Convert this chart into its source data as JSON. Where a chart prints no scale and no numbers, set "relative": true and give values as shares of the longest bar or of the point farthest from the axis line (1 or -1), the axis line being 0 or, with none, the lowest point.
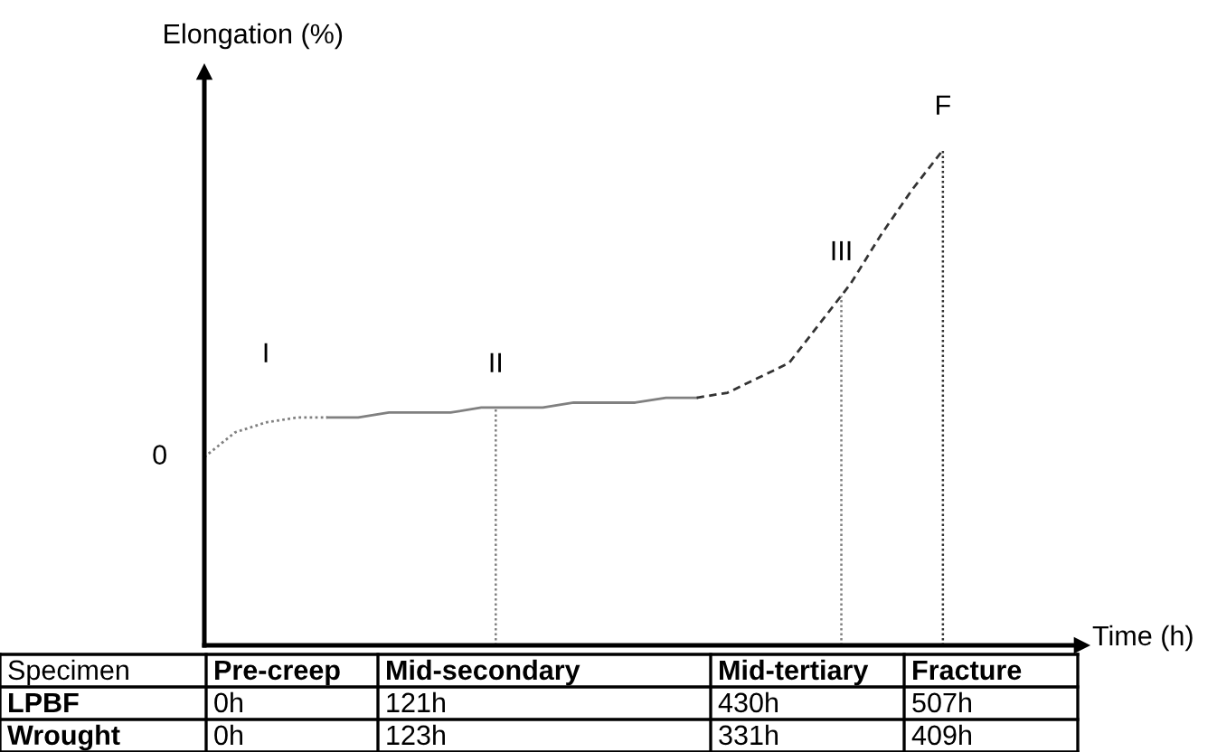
{
  "chart_data": {
    "type": "line",
    "relative": true,
    "xlabel": "Time (h)",
    "ylabel": "Elongation (%)",
    "categories": [
      null,
      null,
      null,
      null,
      null,
      null,
      null,
      null,
      null,
      null,
      null,
      null,
      null,
      null,
      null,
      null,
      null,
      null,
      null,
      null,
      null,
      null,
      null,
      null,
      null,
      null,
      null,
      null,
      null
    ],
    "series": [
      {
        "color": "#808080",
        "line_style": "dotted",
        "values": [
          0.38,
          0.43,
          0.45,
          0.46,
          0.46,
          null,
          null,
          null,
          null,
          null,
          null,
          null,
          null,
          null,
          null,
          null,
          null,
          null,
          null,
          null,
          null,
          null,
          null,
          null,
          null,
          null,
          null,
          null,
          null
        ]
      },
      {
        "color": "#808080",
        "line_style": "solid",
        "values": [
          null,
          null,
          null,
          null,
          0.46,
          0.46,
          0.47,
          0.47,
          0.47,
          0.48,
          0.48,
          0.48,
          0.49,
          0.49,
          0.49,
          0.5,
          0.5,
          null,
          null,
          null,
          null,
          null,
          null,
          null,
          null,
          null,
          null,
          null,
          null
        ]
      },
      {
        "color": "#333333",
        "line_style": "dashed",
        "values": [
          null,
          null,
          null,
          null,
          null,
          null,
          null,
          null,
          null,
          null,
          null,
          null,
          null,
          null,
          null,
          null,
          0.5,
          0.51,
          0.54,
          0.57,
          0.65,
          0.73,
          0.83,
          0.92,
          1.0,
          null,
          null,
          null,
          null
        ]
      }
    ],
    "annotations": [
      "I",
      "II",
      "III",
      "F",
      "0",
      "Specimen",
      "Pre-creep",
      "Mid-secondary",
      "Mid-tertiary",
      "Fracture",
      "LPBF",
      "0h",
      "121h",
      "430h",
      "507h",
      "Wrought",
      "0h",
      "123h",
      "331h",
      "409h"
    ]
  }
}
